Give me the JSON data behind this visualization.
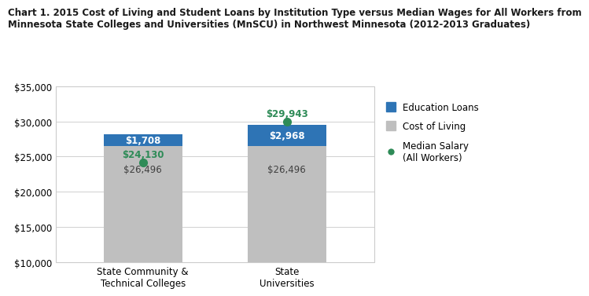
{
  "title_line1": "Chart 1. 2015 Cost of Living and Student Loans by Institution Type versus Median Wages for All Workers from",
  "title_line2": "Minnesota State Colleges and Universities (MnSCU) in Northwest Minnesota (2012-2013 Graduates)",
  "categories": [
    "State Community &\nTechnical Colleges",
    "State\nUniversities"
  ],
  "cost_of_living": [
    26496,
    26496
  ],
  "education_loans": [
    1708,
    2968
  ],
  "median_salary": [
    24130,
    29943
  ],
  "bar_width": 0.18,
  "col_color": "#bfbfbf",
  "edu_color": "#2E74B5",
  "salary_color": "#2E8B57",
  "ylim": [
    10000,
    35000
  ],
  "yticks": [
    10000,
    15000,
    20000,
    25000,
    30000,
    35000
  ],
  "bar_label_color_col": "#404040",
  "bar_label_color_edu": "#ffffff",
  "salary_label_color": "#2E8B57",
  "grid_color": "#d0d0d0",
  "title_fontsize": 8.5,
  "tick_fontsize": 8.5,
  "label_fontsize": 8.5,
  "legend_fontsize": 8.5,
  "x_positions": [
    0.25,
    0.58
  ]
}
